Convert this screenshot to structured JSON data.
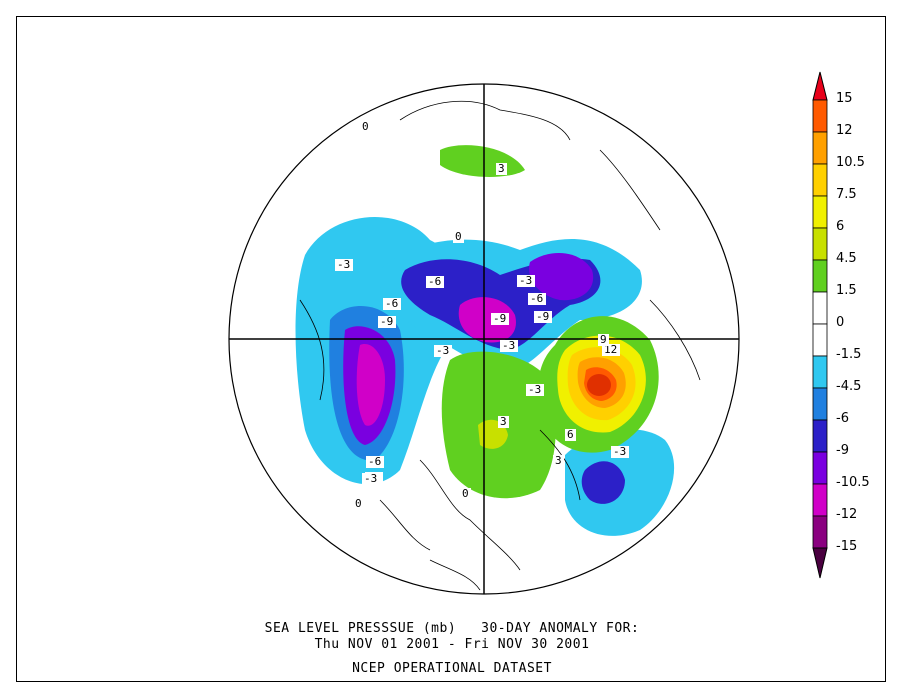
{
  "caption": {
    "line1": "SEA LEVEL PRESSSUE (mb)   30-DAY ANOMALY FOR:",
    "line2": "Thu NOV 01 2001 - Fri NOV 30 2001",
    "line3": "NCEP OPERATIONAL DATASET"
  },
  "colorbar": {
    "labels": [
      "15",
      "12",
      "10.5",
      "7.5",
      "6",
      "4.5",
      "1.5",
      "0",
      "-1.5",
      "-4.5",
      "-6",
      "-9",
      "-10.5",
      "-12",
      "-15"
    ],
    "colors": [
      "#e8001a",
      "#ff5a00",
      "#ffa000",
      "#ffd000",
      "#f0f000",
      "#c8e000",
      "#60d020",
      "#ffffff",
      "#ffffff",
      "#30c8f0",
      "#2080e0",
      "#2c20c8",
      "#7a00e0",
      "#d000c8",
      "#8a0080",
      "#4a0040"
    ]
  },
  "map": {
    "contour_labels": [
      "0",
      "0",
      "-3",
      "-3",
      "-6",
      "-6",
      "-6",
      "-6",
      "-9",
      "-9",
      "-9",
      "-3",
      "-3",
      "-3",
      "-3",
      "12",
      "9",
      "6",
      "3",
      "3",
      "-3",
      "-6",
      "-3",
      "0",
      "0",
      "3"
    ],
    "regions": {
      "high_center_color": "#e03000",
      "low_center_color": "#c800c8"
    }
  }
}
